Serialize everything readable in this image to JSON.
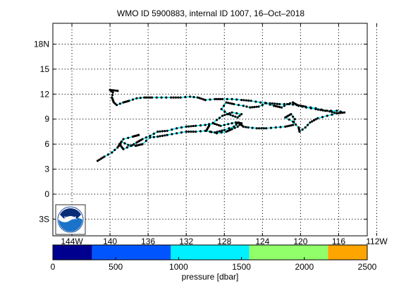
{
  "chart_data": {
    "type": "line",
    "title": "WMO ID 5900883, internal ID 1007, 16–Oct–2018",
    "xaxis": {
      "range": [
        -146,
        -113
      ],
      "ticks": [
        -144,
        -140,
        -136,
        -132,
        -128,
        -124,
        -120,
        -116,
        -112
      ],
      "tick_labels": [
        "144W",
        "140",
        "136",
        "132",
        "128",
        "124",
        "120",
        "116",
        "112W"
      ]
    },
    "yaxis": {
      "range": [
        -5,
        20.5
      ],
      "ticks": [
        -3,
        0,
        3,
        6,
        9,
        12,
        15,
        18
      ],
      "tick_labels": [
        "3S",
        "0",
        "3",
        "6",
        "9",
        "12",
        "15",
        "18N"
      ]
    },
    "grid": true,
    "track": {
      "line_color": "#00e5ee",
      "marker_color": "#000000",
      "points": [
        [
          -141.3,
          4.0
        ],
        [
          -140.6,
          4.5
        ],
        [
          -139.8,
          5.0
        ],
        [
          -139.2,
          5.6
        ],
        [
          -138.8,
          6.3
        ],
        [
          -138.1,
          5.9
        ],
        [
          -137.3,
          5.8
        ],
        [
          -136.6,
          6.0
        ],
        [
          -135.8,
          6.8
        ],
        [
          -135.0,
          6.9
        ],
        [
          -134.0,
          7.1
        ],
        [
          -133.0,
          7.3
        ],
        [
          -132.0,
          7.5
        ],
        [
          -131.0,
          7.5
        ],
        [
          -130.0,
          7.6
        ],
        [
          -129.0,
          7.4
        ],
        [
          -128.0,
          7.7
        ],
        [
          -127.0,
          8.1
        ],
        [
          -126.5,
          8.6
        ],
        [
          -126.0,
          8.1
        ],
        [
          -125.5,
          8.0
        ],
        [
          -124.6,
          7.9
        ],
        [
          -123.6,
          7.9
        ],
        [
          -122.6,
          8.0
        ],
        [
          -121.6,
          8.1
        ],
        [
          -120.8,
          8.3
        ],
        [
          -120.6,
          9.0
        ],
        [
          -121.0,
          9.6
        ],
        [
          -121.6,
          9.2
        ],
        [
          -120.8,
          8.7
        ],
        [
          -120.2,
          8.0
        ],
        [
          -120.1,
          7.5
        ],
        [
          -119.5,
          8.0
        ],
        [
          -119.0,
          8.6
        ],
        [
          -118.2,
          9.1
        ],
        [
          -117.2,
          9.4
        ],
        [
          -116.2,
          9.7
        ],
        [
          -115.4,
          9.8
        ],
        [
          -116.2,
          10.0
        ],
        [
          -117.4,
          10.0
        ],
        [
          -118.4,
          10.2
        ],
        [
          -119.4,
          10.4
        ],
        [
          -120.2,
          10.6
        ],
        [
          -120.8,
          11.0
        ],
        [
          -121.4,
          10.8
        ],
        [
          -122.0,
          10.4
        ],
        [
          -122.8,
          10.6
        ],
        [
          -123.6,
          10.9
        ],
        [
          -124.4,
          10.5
        ],
        [
          -125.3,
          10.4
        ],
        [
          -126.0,
          10.6
        ],
        [
          -127.0,
          10.8
        ],
        [
          -127.8,
          11.0
        ],
        [
          -128.3,
          10.2
        ],
        [
          -127.6,
          9.6
        ],
        [
          -126.6,
          9.2
        ],
        [
          -126.2,
          9.6
        ],
        [
          -127.2,
          9.8
        ],
        [
          -128.2,
          9.4
        ],
        [
          -128.8,
          8.9
        ],
        [
          -129.6,
          8.2
        ],
        [
          -129.9,
          7.6
        ],
        [
          -128.8,
          7.3
        ],
        [
          -127.8,
          7.5
        ],
        [
          -127.2,
          7.8
        ],
        [
          -126.6,
          8.1
        ],
        [
          -126.2,
          8.5
        ],
        [
          -126.8,
          8.6
        ],
        [
          -127.6,
          8.4
        ],
        [
          -128.4,
          8.2
        ],
        [
          -129.2,
          8.5
        ],
        [
          -130.0,
          8.3
        ],
        [
          -131.0,
          8.2
        ],
        [
          -132.0,
          8.1
        ],
        [
          -133.0,
          7.9
        ],
        [
          -134.0,
          7.6
        ],
        [
          -135.0,
          7.5
        ],
        [
          -135.8,
          7.0
        ],
        [
          -136.6,
          6.6
        ],
        [
          -137.2,
          6.2
        ],
        [
          -137.8,
          5.8
        ],
        [
          -138.6,
          5.4
        ],
        [
          -139.0,
          6.0
        ],
        [
          -138.6,
          6.6
        ],
        [
          -137.6,
          6.9
        ],
        [
          -137.0,
          7.1
        ]
      ],
      "upper_branch": [
        [
          -130.0,
          11.3
        ],
        [
          -130.8,
          11.6
        ],
        [
          -131.6,
          11.7
        ],
        [
          -132.6,
          11.6
        ],
        [
          -133.6,
          11.6
        ],
        [
          -134.6,
          11.6
        ],
        [
          -135.6,
          11.6
        ],
        [
          -136.4,
          11.6
        ],
        [
          -137.2,
          11.5
        ],
        [
          -138.0,
          11.2
        ],
        [
          -138.6,
          11.0
        ],
        [
          -139.3,
          10.7
        ],
        [
          -139.6,
          11.0
        ],
        [
          -139.8,
          11.6
        ],
        [
          -139.7,
          12.2
        ],
        [
          -140.0,
          12.5
        ],
        [
          -139.2,
          12.4
        ]
      ],
      "upper_link": [
        [
          -116.2,
          9.7
        ],
        [
          -117.2,
          10.0
        ],
        [
          -118.4,
          10.3
        ],
        [
          -119.5,
          10.5
        ],
        [
          -120.4,
          10.7
        ],
        [
          -121.2,
          10.8
        ],
        [
          -122.2,
          10.8
        ],
        [
          -123.2,
          10.9
        ],
        [
          -124.2,
          11.0
        ],
        [
          -125.2,
          11.2
        ],
        [
          -126.2,
          11.3
        ],
        [
          -127.2,
          11.4
        ],
        [
          -128.2,
          11.4
        ],
        [
          -129.0,
          11.4
        ],
        [
          -130.0,
          11.3
        ]
      ]
    },
    "colorbar": {
      "label": "pressure [dbar]",
      "range": [
        0,
        2500
      ],
      "ticks": [
        0,
        500,
        1000,
        1500,
        2000,
        2500
      ],
      "tick_labels": [
        "0",
        "500",
        "1000",
        "1500",
        "2000",
        "2500"
      ],
      "bands": [
        {
          "from": 0,
          "to": 312,
          "color": "#00008f"
        },
        {
          "from": 312,
          "to": 938,
          "color": "#0055ff"
        },
        {
          "from": 938,
          "to": 1562,
          "color": "#00f0ff"
        },
        {
          "from": 1562,
          "to": 2188,
          "color": "#90ff6a"
        },
        {
          "from": 2188,
          "to": 2500,
          "color": "#ffa500"
        }
      ]
    },
    "logo_text": "NOAA"
  }
}
